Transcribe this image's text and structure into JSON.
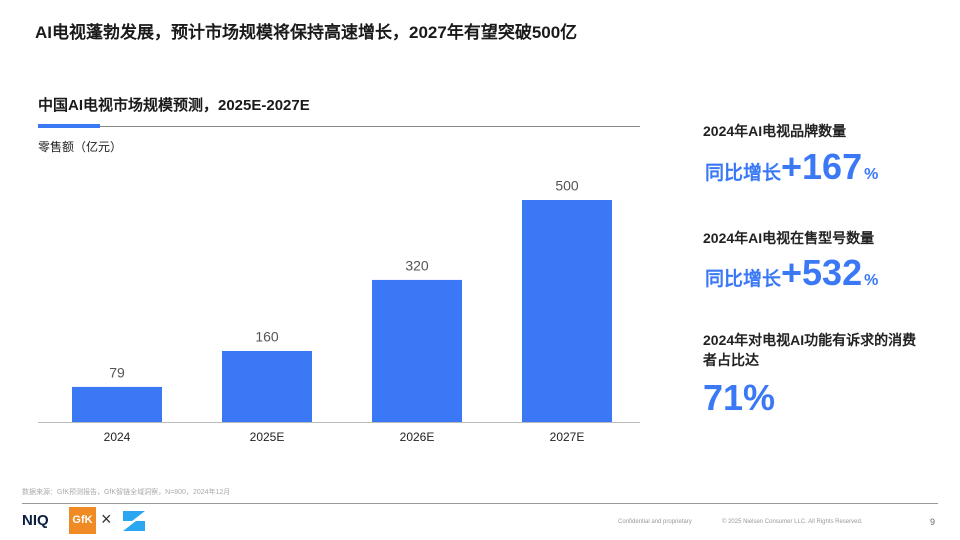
{
  "header": {
    "title": "AI电视蓬勃发展，预计市场规模将保持高速增长，2027年有望突破500亿"
  },
  "chart_data": {
    "type": "bar",
    "title": "中国AI电视市场规模预测，2025E-2027E",
    "y_label": "零售额（亿元）",
    "categories": [
      "2024",
      "2025E",
      "2026E",
      "2027E"
    ],
    "values": [
      79,
      160,
      320,
      500
    ],
    "color": "#3a78f5"
  },
  "stats": [
    {
      "label": "2024年AI电视品牌数量",
      "prefix": "同比增长",
      "value": "+167",
      "unit": "%"
    },
    {
      "label": "2024年AI电视在售型号数量",
      "prefix": "同比增长",
      "value": "+532",
      "unit": "%"
    },
    {
      "label": "2024年对电视AI功能有诉求的消费者占比达",
      "value": "71%"
    }
  ],
  "footer": {
    "source": "数据来源：GfK预测报告，GfK智链全域洞察，N=800，2024年12月",
    "logos": [
      "NIQ",
      "GfK",
      "×"
    ],
    "confidential": "Confidential and proprietary",
    "copyright": "© 2025 Nielsen Consumer LLC. All Rights Reserved.",
    "page": "9"
  }
}
